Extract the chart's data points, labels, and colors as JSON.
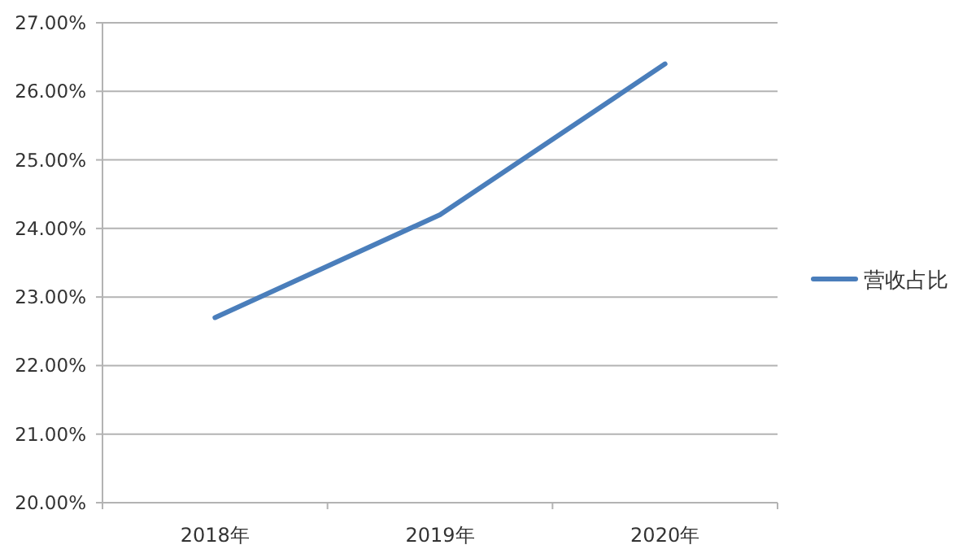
{
  "chart_data": {
    "type": "line",
    "categories": [
      "2018年",
      "2019年",
      "2020年"
    ],
    "series": [
      {
        "name": "营收占比",
        "color": "#4a7ebb",
        "values": [
          22.7,
          24.2,
          26.4
        ]
      }
    ],
    "ylim": [
      20,
      27
    ],
    "yticks": [
      {
        "value": 20,
        "label": "20.00%"
      },
      {
        "value": 21,
        "label": "21.00%"
      },
      {
        "value": 22,
        "label": "22.00%"
      },
      {
        "value": 23,
        "label": "23.00%"
      },
      {
        "value": 24,
        "label": "24.00%"
      },
      {
        "value": 25,
        "label": "25.00%"
      },
      {
        "value": 26,
        "label": "26.00%"
      },
      {
        "value": 27,
        "label": "27.00%"
      }
    ],
    "grid": "y",
    "legend": "right",
    "marker": "none",
    "line_style": "solid"
  }
}
